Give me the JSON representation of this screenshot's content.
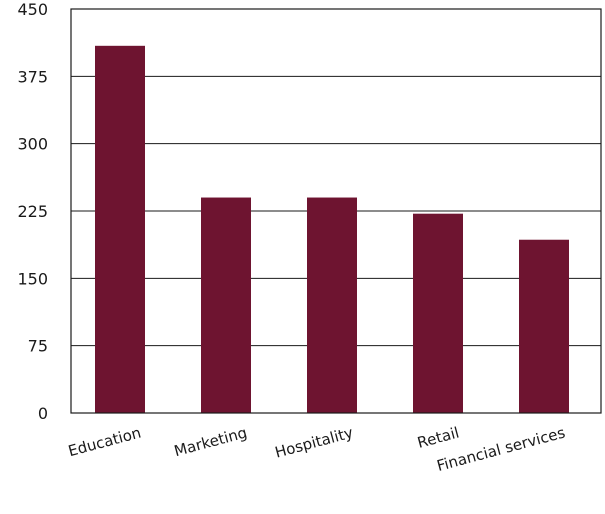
{
  "chart_data": {
    "type": "bar",
    "title": "",
    "xlabel": "",
    "ylabel": "",
    "categories": [
      "Education",
      "Marketing",
      "Hospitality",
      "Retail",
      "Financial services"
    ],
    "values": [
      409,
      240,
      240,
      222,
      193
    ],
    "ylim": [
      0,
      450
    ],
    "yticks": [
      0,
      75,
      150,
      225,
      300,
      375,
      450
    ],
    "grid": true,
    "legend": "none",
    "bar_color": "#6e1430"
  }
}
